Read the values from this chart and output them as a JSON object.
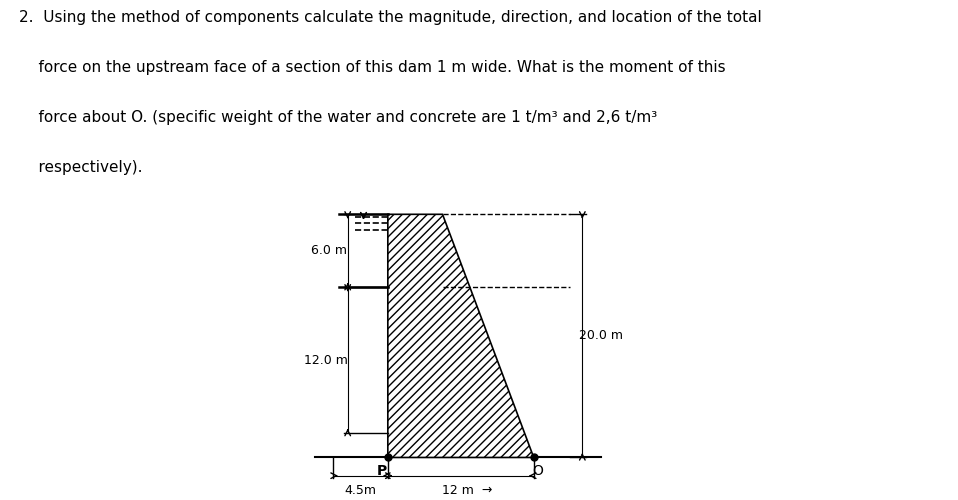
{
  "background_color": "#ffffff",
  "title_line1": "2.  Using the method of components calculate the magnitude, direction, and location of the total",
  "title_line2": "    force on the upstream face of a section of this dam 1 m wide. What is the moment of this",
  "title_line3": "    force about O. (specific weight of the water and concrete are 1 t/m³ and 2,6 t/m³",
  "title_line4": "    respectively).",
  "dam_top_left_x": 4.5,
  "dam_top_right_x": 9.0,
  "dam_bot_left_x": 4.5,
  "dam_bot_right_x": 16.5,
  "dam_top_y": 20.0,
  "dam_bot_y": 0.0,
  "water_top_y": 20.0,
  "water_line_y": 14.0,
  "hatch_pattern": "////",
  "label_P": "P",
  "label_O": "O",
  "dim_6m": "6.0 m",
  "dim_12m": "12.0 m",
  "dim_20m": "20.0 m",
  "dim_4p5m": "4.5m",
  "dim_12_horiz": "12 m",
  "xlim": [
    -2,
    26
  ],
  "ylim": [
    -3.5,
    22
  ],
  "fontsize_title": 11,
  "fontsize_dim": 9
}
